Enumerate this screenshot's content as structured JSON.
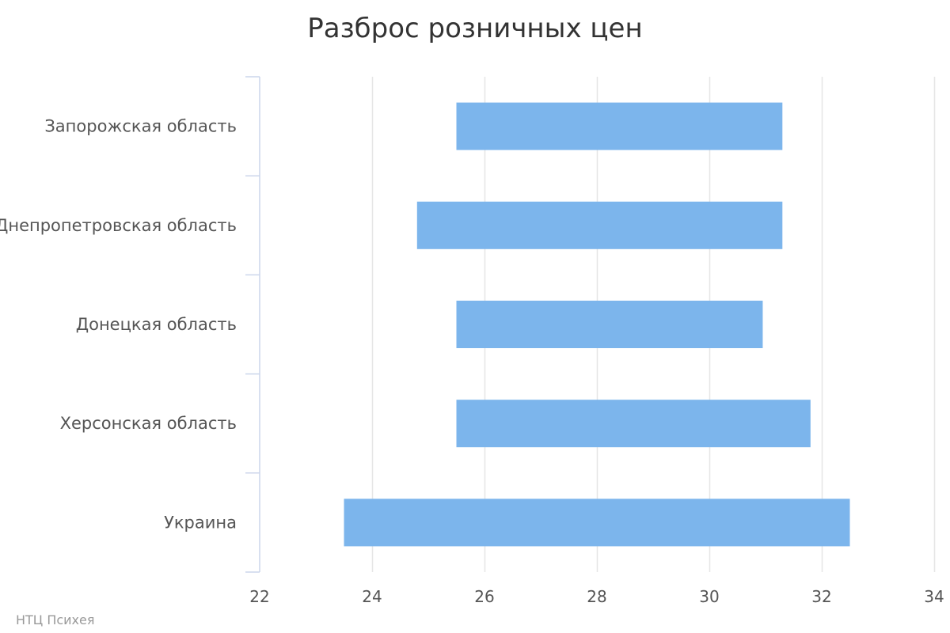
{
  "credit": "НТЦ Психея",
  "chart_data": {
    "type": "bar",
    "orientation": "horizontal",
    "subtype": "columnrange",
    "title": "Разброс розничных цен",
    "xlabel": "",
    "ylabel": "",
    "xlim": [
      22,
      34
    ],
    "tick_values": [
      22,
      24,
      26,
      28,
      30,
      32,
      34
    ],
    "tick_labels": [
      "22",
      "24",
      "26",
      "28",
      "30",
      "32",
      "34"
    ],
    "grid": true,
    "legend": "none",
    "bar_color": "#7cb5ec",
    "grid_color": "#e6e6e6",
    "axis_color": "#ccd6eb",
    "categories": [
      "Запорожская область",
      "Днепропетровская область",
      "Донецкая область",
      "Херсонская область",
      "Украина"
    ],
    "ranges": [
      [
        25.5,
        31.3
      ],
      [
        24.8,
        31.3
      ],
      [
        25.5,
        30.95
      ],
      [
        25.5,
        31.8
      ],
      [
        23.5,
        32.5
      ]
    ]
  }
}
